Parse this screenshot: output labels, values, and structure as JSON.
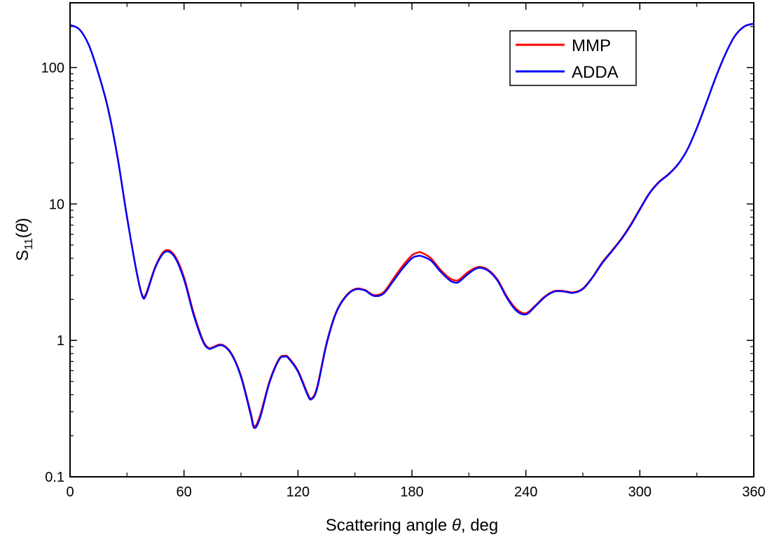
{
  "chart_data": {
    "type": "line",
    "title": "",
    "xlabel": {
      "prefix": "Scattering angle ",
      "symbol": "θ",
      "suffix": ", deg"
    },
    "ylabel": {
      "main": "S",
      "sub": "11",
      "open": "(",
      "symbol": "θ",
      "close": ")"
    },
    "xlim": [
      0,
      360
    ],
    "ylim": [
      0.1,
      250
    ],
    "yscale": "log",
    "grid": false,
    "legend": "top-right",
    "xticks": [
      0,
      60,
      120,
      180,
      240,
      300,
      360
    ],
    "xtick_labels": [
      "0",
      "60",
      "120",
      "180",
      "240",
      "300",
      "360"
    ],
    "yticks": [
      0.1,
      1,
      10,
      100
    ],
    "ytick_labels": [
      "0.1",
      "1",
      "10",
      "100"
    ],
    "x": [
      0,
      5,
      10,
      15,
      20,
      25,
      30,
      35,
      38,
      40,
      45,
      50,
      55,
      60,
      65,
      70,
      73,
      75,
      80,
      85,
      90,
      95,
      97,
      100,
      105,
      110,
      113,
      115,
      120,
      125,
      127,
      130,
      135,
      140,
      145,
      150,
      155,
      160,
      165,
      170,
      175,
      180,
      183,
      185,
      190,
      195,
      200,
      203,
      205,
      210,
      215,
      220,
      225,
      230,
      235,
      240,
      245,
      250,
      255,
      260,
      265,
      270,
      275,
      280,
      285,
      290,
      295,
      300,
      305,
      310,
      315,
      320,
      325,
      330,
      335,
      340,
      345,
      350,
      355,
      360
    ],
    "series": [
      {
        "name": "MMP",
        "color": "#ff0000",
        "values": [
          205,
          190,
          145,
          90,
          50,
          22,
          8,
          3.2,
          2.15,
          2.2,
          3.5,
          4.55,
          4.2,
          2.9,
          1.6,
          1.0,
          0.88,
          0.89,
          0.93,
          0.8,
          0.55,
          0.3,
          0.235,
          0.28,
          0.5,
          0.73,
          0.77,
          0.75,
          0.6,
          0.41,
          0.375,
          0.45,
          0.95,
          1.6,
          2.1,
          2.38,
          2.35,
          2.15,
          2.25,
          2.8,
          3.5,
          4.2,
          4.4,
          4.4,
          4.0,
          3.3,
          2.85,
          2.75,
          2.8,
          3.2,
          3.45,
          3.3,
          2.8,
          2.1,
          1.7,
          1.58,
          1.8,
          2.1,
          2.3,
          2.3,
          2.25,
          2.4,
          2.9,
          3.7,
          4.5,
          5.5,
          7.0,
          9.2,
          12.0,
          14.5,
          16.5,
          19.5,
          25,
          36,
          55,
          85,
          125,
          170,
          200,
          210
        ]
      },
      {
        "name": "ADDA",
        "color": "#0000ff",
        "values": [
          205,
          190,
          145,
          90,
          50,
          22,
          8,
          3.2,
          2.12,
          2.15,
          3.45,
          4.45,
          4.1,
          2.8,
          1.55,
          0.98,
          0.87,
          0.88,
          0.92,
          0.79,
          0.54,
          0.29,
          0.228,
          0.27,
          0.49,
          0.72,
          0.76,
          0.74,
          0.59,
          0.4,
          0.37,
          0.44,
          0.93,
          1.58,
          2.08,
          2.36,
          2.33,
          2.12,
          2.2,
          2.7,
          3.35,
          4.0,
          4.15,
          4.15,
          3.85,
          3.2,
          2.75,
          2.65,
          2.7,
          3.1,
          3.4,
          3.25,
          2.75,
          2.05,
          1.65,
          1.55,
          1.78,
          2.08,
          2.28,
          2.28,
          2.23,
          2.38,
          2.88,
          3.65,
          4.45,
          5.45,
          6.9,
          9.1,
          11.9,
          14.4,
          16.4,
          19.4,
          25,
          36,
          55,
          85,
          125,
          170,
          200,
          210
        ]
      }
    ]
  }
}
